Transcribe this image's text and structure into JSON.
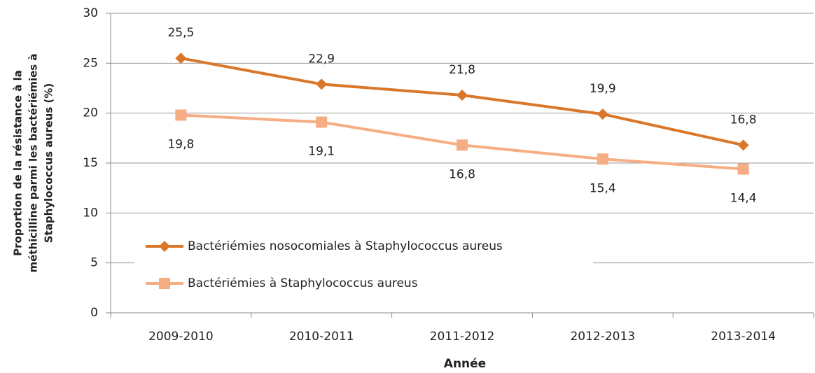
{
  "chart_data": {
    "type": "line",
    "categories": [
      "2009-2010",
      "2010-2011",
      "2011-2012",
      "2012-2013",
      "2013-2014"
    ],
    "series": [
      {
        "name": "Bactériémies nosocomiales à Staphylococcus aureus",
        "color": "#d9772b",
        "marker": "diamond",
        "values": [
          25.5,
          22.9,
          21.8,
          19.9,
          16.8
        ],
        "value_labels": [
          "25,5",
          "22,9",
          "21,8",
          "19,9",
          "16,8"
        ]
      },
      {
        "name": "Bactériémies à Staphylococcus aureus",
        "color": "#f6ad84",
        "marker": "square",
        "values": [
          19.8,
          19.1,
          16.8,
          15.4,
          14.4
        ],
        "value_labels": [
          "19,8",
          "19,1",
          "16,8",
          "15,4",
          "14,4"
        ]
      }
    ],
    "x_label": "Année",
    "y_label": [
      "Proportion de la résistance à la",
      "méthicilline parmi les bactériémies à",
      "Staphylococcus aureus (%)"
    ],
    "ylim": [
      0,
      30
    ],
    "yticks": [
      0,
      5,
      10,
      15,
      20,
      25,
      30
    ],
    "grid": true,
    "legend": "lower left"
  }
}
